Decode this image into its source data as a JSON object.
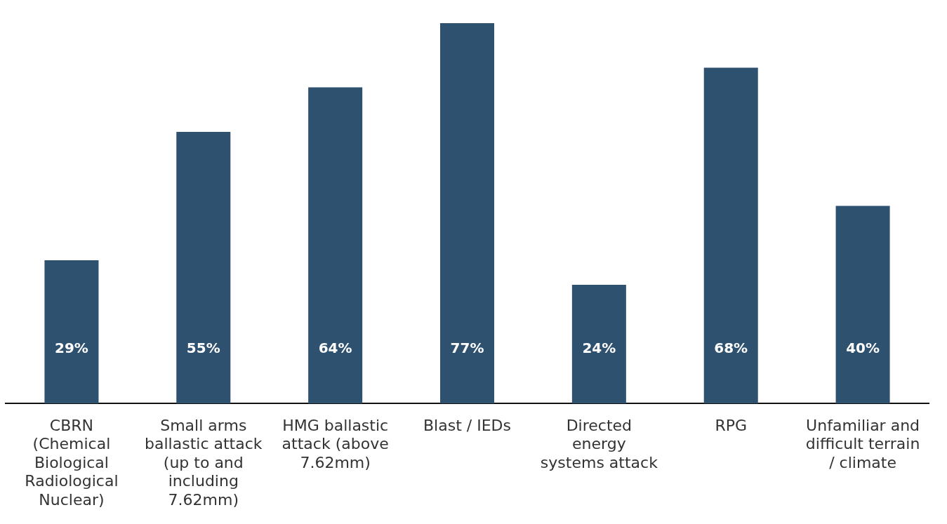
{
  "chart_data": {
    "type": "bar",
    "categories": [
      "CBRN (Chemical Biological Radiological Nuclear)",
      "Small arms ballastic attack (up to and including 7.62mm)",
      "HMG ballastic attack (above 7.62mm)",
      "Blast / IEDs",
      "Directed energy systems attack",
      "RPG",
      "Unfamiliar and difficult terrain / climate"
    ],
    "values": [
      29,
      55,
      64,
      77,
      24,
      68,
      40
    ],
    "value_labels": [
      "29%",
      "55%",
      "64%",
      "77%",
      "24%",
      "68%",
      "40%"
    ],
    "color": "#2f5170",
    "grid": false,
    "legend": false
  }
}
